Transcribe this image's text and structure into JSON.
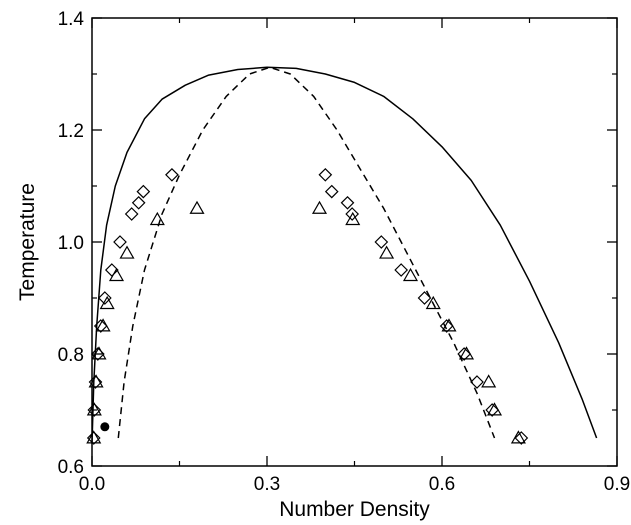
{
  "chart_data": {
    "type": "scatter",
    "xlabel": "Number Density",
    "ylabel": "Temperature",
    "xlim": [
      0.0,
      0.9
    ],
    "ylim": [
      0.6,
      1.4
    ],
    "x_ticks": [
      "0.0",
      "0.3",
      "0.6",
      "0.9"
    ],
    "y_ticks": [
      "0.6",
      "0.8",
      "1.0",
      "1.2",
      "1.4"
    ],
    "grid": false,
    "legend": "none",
    "series": [
      {
        "kind": "line",
        "style": "solid",
        "points": [
          [
            0.0,
            0.64
          ],
          [
            0.003,
            0.75
          ],
          [
            0.008,
            0.85
          ],
          [
            0.015,
            0.95
          ],
          [
            0.025,
            1.03
          ],
          [
            0.04,
            1.1
          ],
          [
            0.06,
            1.16
          ],
          [
            0.09,
            1.22
          ],
          [
            0.12,
            1.255
          ],
          [
            0.16,
            1.28
          ],
          [
            0.2,
            1.298
          ],
          [
            0.25,
            1.308
          ],
          [
            0.3,
            1.312
          ],
          [
            0.35,
            1.31
          ],
          [
            0.4,
            1.3
          ],
          [
            0.45,
            1.285
          ],
          [
            0.5,
            1.26
          ],
          [
            0.55,
            1.22
          ],
          [
            0.6,
            1.17
          ],
          [
            0.65,
            1.11
          ],
          [
            0.7,
            1.03
          ],
          [
            0.75,
            0.93
          ],
          [
            0.8,
            0.82
          ],
          [
            0.84,
            0.72
          ],
          [
            0.865,
            0.65
          ]
        ]
      },
      {
        "kind": "line",
        "style": "dashed",
        "points": [
          [
            0.045,
            0.65
          ],
          [
            0.055,
            0.75
          ],
          [
            0.07,
            0.85
          ],
          [
            0.09,
            0.95
          ],
          [
            0.12,
            1.05
          ],
          [
            0.15,
            1.12
          ],
          [
            0.19,
            1.2
          ],
          [
            0.23,
            1.26
          ],
          [
            0.27,
            1.3
          ],
          [
            0.305,
            1.312
          ],
          [
            0.34,
            1.3
          ],
          [
            0.38,
            1.26
          ],
          [
            0.42,
            1.2
          ],
          [
            0.46,
            1.13
          ],
          [
            0.5,
            1.06
          ],
          [
            0.54,
            0.98
          ],
          [
            0.58,
            0.9
          ],
          [
            0.62,
            0.82
          ],
          [
            0.66,
            0.73
          ],
          [
            0.69,
            0.65
          ]
        ]
      },
      {
        "kind": "marker",
        "marker": "diamond",
        "points": [
          [
            0.003,
            0.65
          ],
          [
            0.004,
            0.7
          ],
          [
            0.006,
            0.75
          ],
          [
            0.01,
            0.8
          ],
          [
            0.015,
            0.85
          ],
          [
            0.022,
            0.9
          ],
          [
            0.034,
            0.95
          ],
          [
            0.048,
            1.0
          ],
          [
            0.068,
            1.05
          ],
          [
            0.08,
            1.07
          ],
          [
            0.088,
            1.09
          ],
          [
            0.137,
            1.12
          ],
          [
            0.4,
            1.12
          ],
          [
            0.411,
            1.09
          ],
          [
            0.438,
            1.07
          ],
          [
            0.446,
            1.05
          ],
          [
            0.496,
            1.0
          ],
          [
            0.53,
            0.95
          ],
          [
            0.57,
            0.9
          ],
          [
            0.608,
            0.85
          ],
          [
            0.638,
            0.8
          ],
          [
            0.66,
            0.75
          ],
          [
            0.686,
            0.7
          ],
          [
            0.736,
            0.65
          ]
        ]
      },
      {
        "kind": "marker",
        "marker": "triangle",
        "points": [
          [
            0.003,
            0.65
          ],
          [
            0.004,
            0.7
          ],
          [
            0.007,
            0.75
          ],
          [
            0.012,
            0.8
          ],
          [
            0.019,
            0.85
          ],
          [
            0.026,
            0.89
          ],
          [
            0.042,
            0.94
          ],
          [
            0.06,
            0.98
          ],
          [
            0.112,
            1.04
          ],
          [
            0.18,
            1.06
          ],
          [
            0.39,
            1.06
          ],
          [
            0.447,
            1.04
          ],
          [
            0.505,
            0.98
          ],
          [
            0.546,
            0.94
          ],
          [
            0.585,
            0.89
          ],
          [
            0.612,
            0.85
          ],
          [
            0.642,
            0.8
          ],
          [
            0.68,
            0.75
          ],
          [
            0.69,
            0.7
          ],
          [
            0.731,
            0.65
          ]
        ]
      },
      {
        "kind": "marker",
        "marker": "filled-circle",
        "points": [
          [
            0.022,
            0.67
          ]
        ]
      }
    ]
  }
}
